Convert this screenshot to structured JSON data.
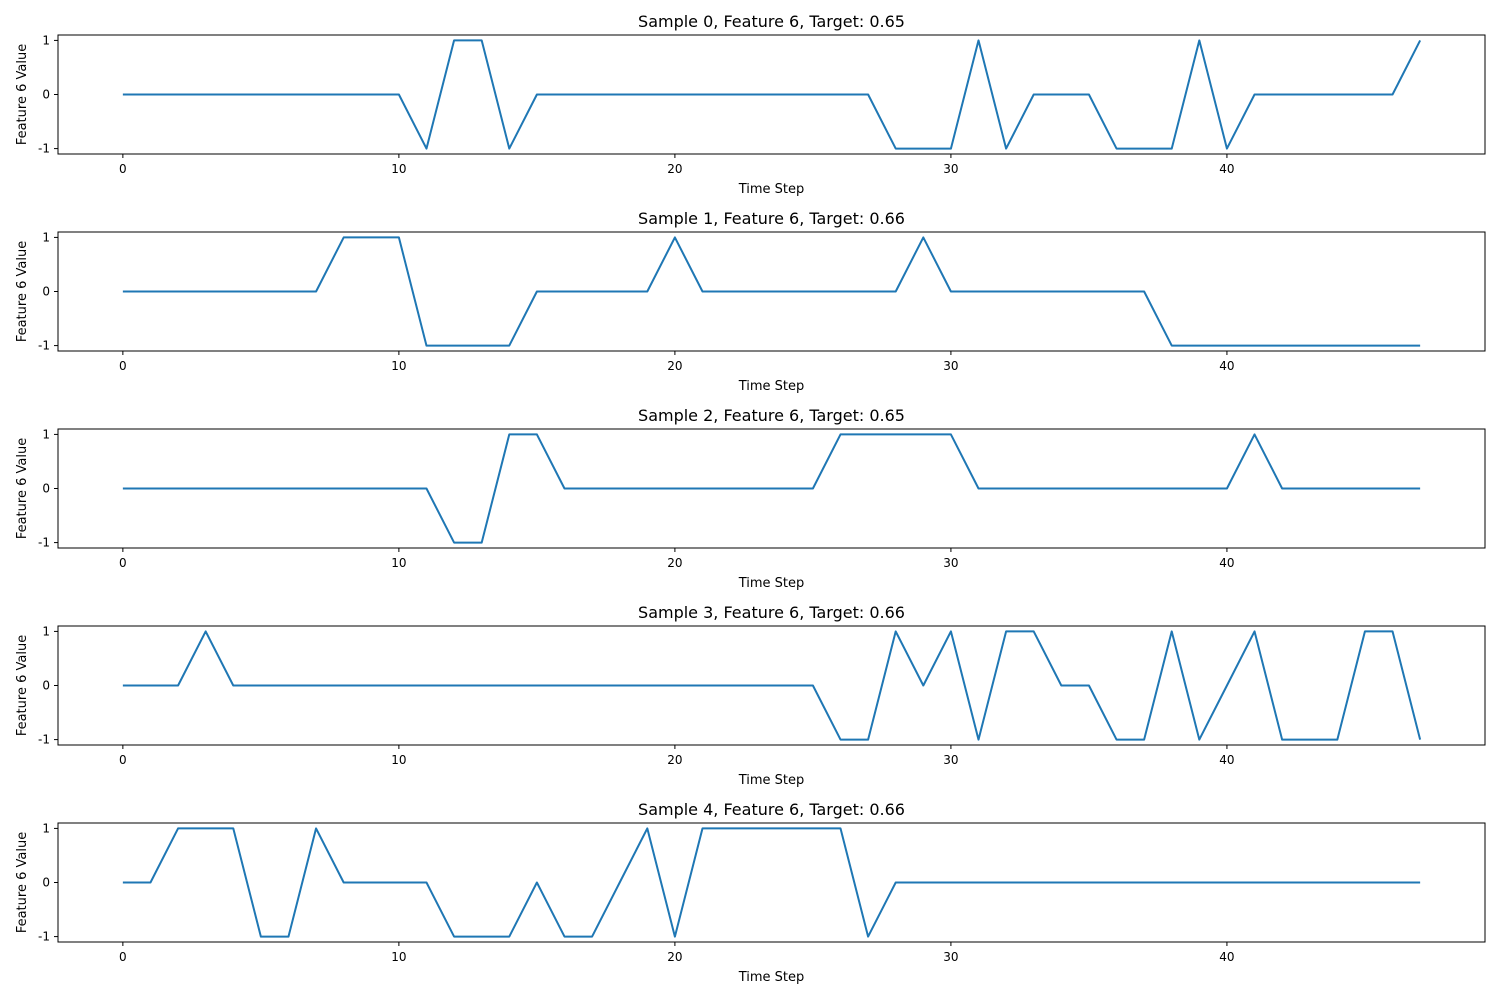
{
  "colors": {
    "series": "#1f77b4",
    "axis": "#000000",
    "background": "#ffffff"
  },
  "chart_data": [
    {
      "type": "line",
      "title": "Sample 0, Feature 6, Target: 0.65",
      "xlabel": "Time Step",
      "ylabel": "Feature 6 Value",
      "xlim": [
        -2.35,
        49.35
      ],
      "ylim": [
        -1.1,
        1.1
      ],
      "xticks": [
        0,
        10,
        20,
        30,
        40
      ],
      "yticks": [
        -1,
        0,
        1
      ],
      "grid": false,
      "x": [
        0,
        1,
        2,
        3,
        4,
        5,
        6,
        7,
        8,
        9,
        10,
        11,
        12,
        13,
        14,
        15,
        16,
        17,
        18,
        19,
        20,
        21,
        22,
        23,
        24,
        25,
        26,
        27,
        28,
        29,
        30,
        31,
        32,
        33,
        34,
        35,
        36,
        37,
        38,
        39,
        40,
        41,
        42,
        43,
        44,
        45,
        46,
        47
      ],
      "values": [
        0,
        0,
        0,
        0,
        0,
        0,
        0,
        0,
        0,
        0,
        0,
        -1,
        1,
        1,
        -1,
        0,
        0,
        0,
        0,
        0,
        0,
        0,
        0,
        0,
        0,
        0,
        0,
        0,
        -1,
        -1,
        -1,
        1,
        -1,
        0,
        0,
        0,
        -1,
        -1,
        -1,
        1,
        -1,
        0,
        0,
        0,
        0,
        0,
        0,
        1
      ]
    },
    {
      "type": "line",
      "title": "Sample 1, Feature 6, Target: 0.66",
      "xlabel": "Time Step",
      "ylabel": "Feature 6 Value",
      "xlim": [
        -2.35,
        49.35
      ],
      "ylim": [
        -1.1,
        1.1
      ],
      "xticks": [
        0,
        10,
        20,
        30,
        40
      ],
      "yticks": [
        -1,
        0,
        1
      ],
      "grid": false,
      "x": [
        0,
        1,
        2,
        3,
        4,
        5,
        6,
        7,
        8,
        9,
        10,
        11,
        12,
        13,
        14,
        15,
        16,
        17,
        18,
        19,
        20,
        21,
        22,
        23,
        24,
        25,
        26,
        27,
        28,
        29,
        30,
        31,
        32,
        33,
        34,
        35,
        36,
        37,
        38,
        39,
        40,
        41,
        42,
        43,
        44,
        45,
        46,
        47
      ],
      "values": [
        0,
        0,
        0,
        0,
        0,
        0,
        0,
        0,
        1,
        1,
        1,
        -1,
        -1,
        -1,
        -1,
        0,
        0,
        0,
        0,
        0,
        1,
        0,
        0,
        0,
        0,
        0,
        0,
        0,
        0,
        1,
        0,
        0,
        0,
        0,
        0,
        0,
        0,
        0,
        -1,
        -1,
        -1,
        -1,
        -1,
        -1,
        -1,
        -1,
        -1,
        -1
      ]
    },
    {
      "type": "line",
      "title": "Sample 2, Feature 6, Target: 0.65",
      "xlabel": "Time Step",
      "ylabel": "Feature 6 Value",
      "xlim": [
        -2.35,
        49.35
      ],
      "ylim": [
        -1.1,
        1.1
      ],
      "xticks": [
        0,
        10,
        20,
        30,
        40
      ],
      "yticks": [
        -1,
        0,
        1
      ],
      "grid": false,
      "x": [
        0,
        1,
        2,
        3,
        4,
        5,
        6,
        7,
        8,
        9,
        10,
        11,
        12,
        13,
        14,
        15,
        16,
        17,
        18,
        19,
        20,
        21,
        22,
        23,
        24,
        25,
        26,
        27,
        28,
        29,
        30,
        31,
        32,
        33,
        34,
        35,
        36,
        37,
        38,
        39,
        40,
        41,
        42,
        43,
        44,
        45,
        46,
        47
      ],
      "values": [
        0,
        0,
        0,
        0,
        0,
        0,
        0,
        0,
        0,
        0,
        0,
        0,
        -1,
        -1,
        1,
        1,
        0,
        0,
        0,
        0,
        0,
        0,
        0,
        0,
        0,
        0,
        1,
        1,
        1,
        1,
        1,
        0,
        0,
        0,
        0,
        0,
        0,
        0,
        0,
        0,
        0,
        1,
        0,
        0,
        0,
        0,
        0,
        0
      ]
    },
    {
      "type": "line",
      "title": "Sample 3, Feature 6, Target: 0.66",
      "xlabel": "Time Step",
      "ylabel": "Feature 6 Value",
      "xlim": [
        -2.35,
        49.35
      ],
      "ylim": [
        -1.1,
        1.1
      ],
      "xticks": [
        0,
        10,
        20,
        30,
        40
      ],
      "yticks": [
        -1,
        0,
        1
      ],
      "grid": false,
      "x": [
        0,
        1,
        2,
        3,
        4,
        5,
        6,
        7,
        8,
        9,
        10,
        11,
        12,
        13,
        14,
        15,
        16,
        17,
        18,
        19,
        20,
        21,
        22,
        23,
        24,
        25,
        26,
        27,
        28,
        29,
        30,
        31,
        32,
        33,
        34,
        35,
        36,
        37,
        38,
        39,
        40,
        41,
        42,
        43,
        44,
        45,
        46,
        47
      ],
      "values": [
        0,
        0,
        0,
        1,
        0,
        0,
        0,
        0,
        0,
        0,
        0,
        0,
        0,
        0,
        0,
        0,
        0,
        0,
        0,
        0,
        0,
        0,
        0,
        0,
        0,
        0,
        -1,
        -1,
        1,
        0,
        1,
        -1,
        1,
        1,
        0,
        0,
        -1,
        -1,
        1,
        -1,
        0,
        1,
        -1,
        -1,
        -1,
        1,
        1,
        -1
      ]
    },
    {
      "type": "line",
      "title": "Sample 4, Feature 6, Target: 0.66",
      "xlabel": "Time Step",
      "ylabel": "Feature 6 Value",
      "xlim": [
        -2.35,
        49.35
      ],
      "ylim": [
        -1.1,
        1.1
      ],
      "xticks": [
        0,
        10,
        20,
        30,
        40
      ],
      "yticks": [
        -1,
        0,
        1
      ],
      "grid": false,
      "x": [
        0,
        1,
        2,
        3,
        4,
        5,
        6,
        7,
        8,
        9,
        10,
        11,
        12,
        13,
        14,
        15,
        16,
        17,
        18,
        19,
        20,
        21,
        22,
        23,
        24,
        25,
        26,
        27,
        28,
        29,
        30,
        31,
        32,
        33,
        34,
        35,
        36,
        37,
        38,
        39,
        40,
        41,
        42,
        43,
        44,
        45,
        46,
        47
      ],
      "values": [
        0,
        0,
        1,
        1,
        1,
        -1,
        -1,
        1,
        0,
        0,
        0,
        0,
        -1,
        -1,
        -1,
        0,
        -1,
        -1,
        0,
        1,
        -1,
        1,
        1,
        1,
        1,
        1,
        1,
        -1,
        0,
        0,
        0,
        0,
        0,
        0,
        0,
        0,
        0,
        0,
        0,
        0,
        0,
        0,
        0,
        0,
        0,
        0,
        0,
        0
      ]
    }
  ]
}
